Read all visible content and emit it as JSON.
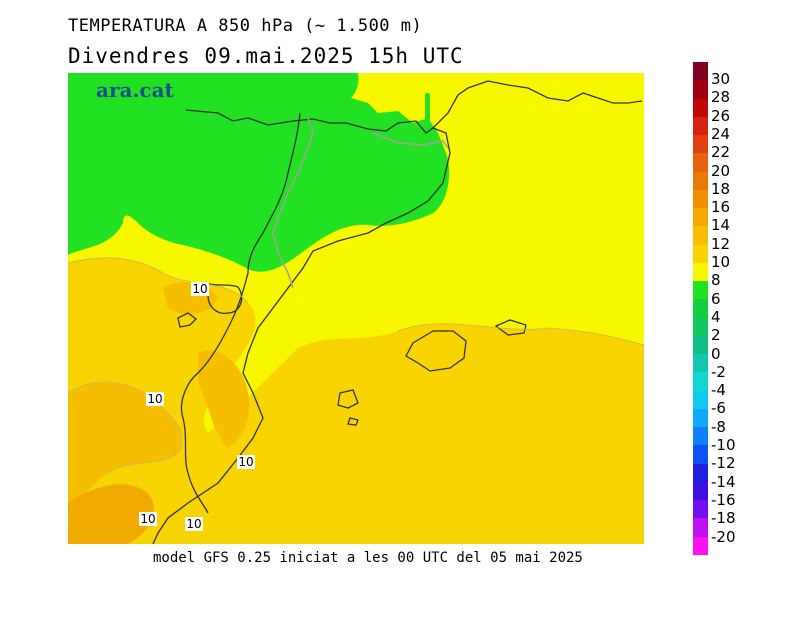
{
  "header": {
    "title": "TEMPERATURA A 850 hPa (~ 1.500 m)",
    "subtitle": "Divendres  09.mai.2025  15h UTC"
  },
  "footer": {
    "text": "model GFS 0.25 iniciat a les 00 UTC del 05 mai 2025"
  },
  "logo": {
    "text": "ara.cat",
    "color": "#1a4f8a"
  },
  "map": {
    "contour_labels": [
      {
        "text": "10",
        "x": 132,
        "y": 220
      },
      {
        "text": "10",
        "x": 87,
        "y": 330
      },
      {
        "text": "10",
        "x": 178,
        "y": 393
      },
      {
        "text": "10",
        "x": 80,
        "y": 450
      },
      {
        "text": "10",
        "x": 126,
        "y": 455
      }
    ],
    "colors": {
      "green": "#22e022",
      "yellow": "#f7f700",
      "light_orange": "#f7d400",
      "orange": "#f5bf00",
      "dark_orange": "#f0aa00"
    }
  },
  "legend": {
    "labels": [
      "30",
      "28",
      "26",
      "24",
      "22",
      "20",
      "18",
      "16",
      "14",
      "12",
      "10",
      "8",
      "6",
      "4",
      "2",
      "0",
      "-2",
      "-4",
      "-6",
      "-8",
      "-10",
      "-12",
      "-14",
      "-16",
      "-18",
      "-20"
    ],
    "colors": [
      "#800020",
      "#a00010",
      "#c00808",
      "#d82010",
      "#e04010",
      "#e86010",
      "#e87808",
      "#f09000",
      "#f5a800",
      "#f5bf00",
      "#f7d400",
      "#f7f700",
      "#22e022",
      "#10d040",
      "#10c860",
      "#10c088",
      "#10c8b0",
      "#10d8d0",
      "#10c8f0",
      "#10a8f8",
      "#1080f8",
      "#1050f8",
      "#2020e0",
      "#4010e0",
      "#7010f0",
      "#c010f0",
      "#ff10f0"
    ]
  }
}
